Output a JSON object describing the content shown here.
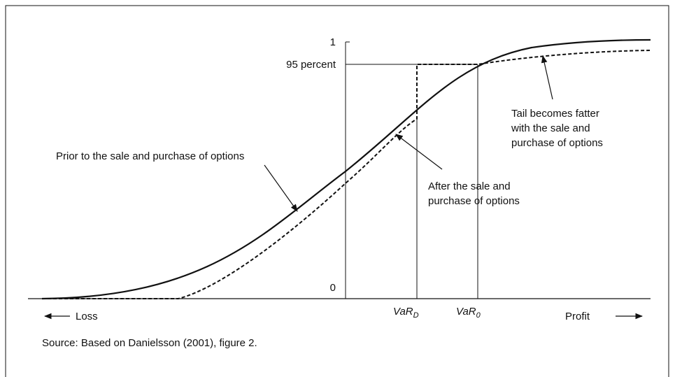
{
  "axis": {
    "y_top": "1",
    "y_95": "95 percent",
    "y_bottom": "0",
    "left": "Loss",
    "right": "Profit"
  },
  "markers": {
    "var_d": {
      "main": "VaR",
      "sub": "D"
    },
    "var_0": {
      "main": "VaR",
      "sub": "0"
    }
  },
  "annotations": {
    "prior": "Prior to the sale and purchase of options",
    "after": [
      "After the sale and",
      "purchase of options"
    ],
    "tail": [
      "Tail becomes fatter",
      "with the sale and",
      "purchase of options"
    ]
  },
  "source": "Source: Based on Danielsson (2001), figure 2."
}
